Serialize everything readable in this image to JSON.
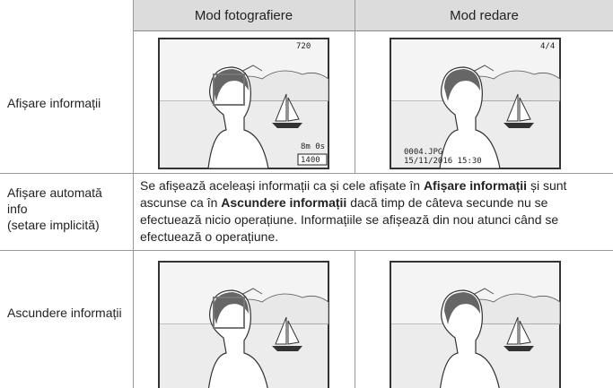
{
  "table": {
    "header": [
      "",
      "Mod fotografiere",
      "Mod redare"
    ],
    "rows": [
      {
        "label": "Afișare informații",
        "cells": [
          [
            "8m 0s",
            "1400",
            "720"
          ],
          [
            "4/4",
            "0004.JPG",
            "15/11/2016 15:30"
          ]
        ]
      },
      {
        "label": [
          "Afișare automată",
          "info",
          "(setare implicită)"
        ],
        "text": [
          "Se afișează aceleași informații ca și cele afișate în ",
          "Afișare informații",
          " și sunt ascunse ca în ",
          "Ascundere informații",
          " dacă timp de câteva secunde nu se efectuează nicio operațiune. Informațiile se afișează din nou atunci când se efectuează o operațiune."
        ]
      },
      {
        "label": "Ascundere informații"
      }
    ]
  }
}
